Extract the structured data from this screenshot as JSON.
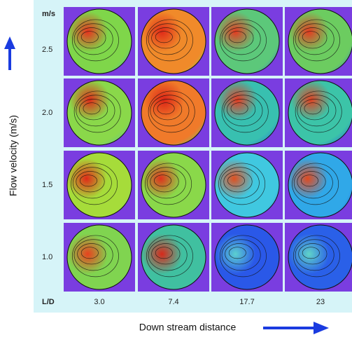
{
  "unit_label": "m/s",
  "row_labels": [
    "2.5",
    "2.0",
    "1.5",
    "1.0"
  ],
  "column_header": "L/D",
  "column_labels": [
    "3.0",
    "7.4",
    "17.7",
    "23"
  ],
  "y_title": "Flow velocity (m/s)",
  "x_title": "Down stream distance"
}
